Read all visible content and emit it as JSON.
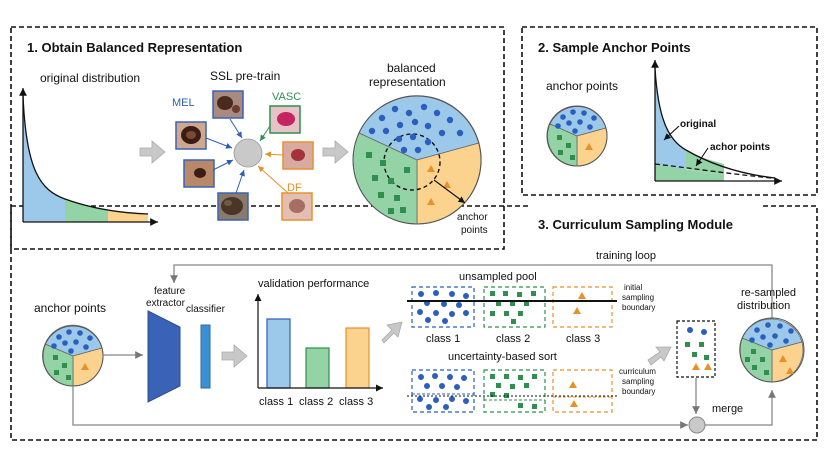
{
  "sections": {
    "s1_title": "1. Obtain Balanced Representation",
    "s2_title": "2. Sample Anchor Points",
    "s3_title": "3. Curriculum Sampling Module"
  },
  "section1": {
    "original_distribution": "original distribution",
    "ssl_pretrain": "SSL pre-train",
    "mel": "MEL",
    "vasc": "VASC",
    "df": "DF",
    "balanced_line1": "balanced",
    "balanced_line2": "representation",
    "anchor_line1": "anchor",
    "anchor_line2": "points"
  },
  "section2": {
    "anchor_points": "anchor points",
    "original": "original",
    "achor_points": "achor points"
  },
  "section3": {
    "training_loop": "training loop",
    "anchor_points": "anchor points",
    "feature_line1": "feature",
    "feature_line2": "extractor",
    "classifier": "classifier",
    "validation_performance": "validation performance",
    "class1": "class 1",
    "class2": "class 2",
    "class3": "class 3",
    "unsampled_pool": "unsampled pool",
    "initial_line1": "initial",
    "initial_line2": "sampling",
    "initial_line3": "boundary",
    "uncertainty_sort": "uncertainty-based sort",
    "curriculum_line1": "curriculum",
    "curriculum_line2": "sampling",
    "curriculum_line3": "boundary",
    "merge": "merge",
    "resampled_line1": "re-sampled",
    "resampled_line2": "distribution"
  },
  "colors": {
    "blue": "#9cc9ea",
    "blue_dark": "#2b5fbf",
    "green": "#93d3a6",
    "green_dark": "#2f8f4e",
    "orange": "#fbd38f",
    "orange_dark": "#e8912a",
    "network_blue": "#3a63b8"
  }
}
